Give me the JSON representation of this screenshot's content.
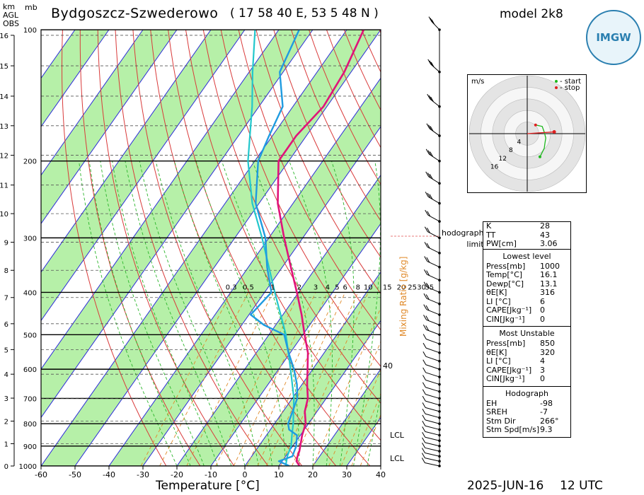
{
  "header": {
    "station": "Bydgoszcz-Szwederowo",
    "coords": "( 17 58 40  E, 53 5 48 N )",
    "model": "model 2k8",
    "date": "2025-JUN-16",
    "time": "12 UTC",
    "logo_text": "IMGW"
  },
  "left_axis": {
    "km_heading": [
      "km",
      "AGL",
      "OBS"
    ],
    "mb_heading": "mb",
    "km_ticks": [
      "0",
      "1",
      "2",
      "3",
      "4",
      "5",
      "6",
      "7",
      "8",
      "9",
      "10",
      "11",
      "12",
      "13",
      "14",
      "15",
      "16"
    ],
    "mb_ticks": [
      "1000",
      "900",
      "800",
      "700",
      "600",
      "500",
      "400",
      "300",
      "200",
      "100"
    ]
  },
  "x_axis": {
    "title": "Temperature [°C]",
    "ticks": [
      "-60",
      "-50",
      "-40",
      "-30",
      "-20",
      "-10",
      "0",
      "10",
      "20",
      "30",
      "40"
    ]
  },
  "mixing_ratio": {
    "label": "Mixing Ratio [g/kg]",
    "values": [
      "0.3",
      "0.5",
      "1",
      "2",
      "3",
      "4",
      "5",
      "6",
      "8",
      "10",
      "15",
      "20",
      "25",
      "30",
      "35"
    ],
    "right_values": [
      "40"
    ]
  },
  "lcl_labels": [
    "LCL",
    "LCL"
  ],
  "hodograph": {
    "unit": "m/s",
    "rings": [
      "4",
      "8",
      "12",
      "16"
    ],
    "legend_start": "- start",
    "legend_stop": "- stop",
    "limit_label": [
      "hodograph",
      "limit"
    ],
    "colors": {
      "trace": "#1db81d",
      "start": "#1db81d",
      "stop": "#e02020",
      "storm": "#e02020"
    }
  },
  "indices": {
    "top": [
      {
        "k": "K",
        "v": "28"
      },
      {
        "k": "TT",
        "v": "43"
      },
      {
        "k": "PW[cm]",
        "v": "3.06"
      }
    ],
    "lowest_level": {
      "title": "Lowest level",
      "rows": [
        {
          "k": "Press[mb]",
          "v": "1000"
        },
        {
          "k": "Temp[°C]",
          "v": "16.1"
        },
        {
          "k": "Dewp[°C]",
          "v": "13.1"
        },
        {
          "k": "θE[K]",
          "v": "316"
        },
        {
          "k": "LI [°C]",
          "v": "6"
        },
        {
          "k": "CAPE[Jkg⁻¹]",
          "v": "0"
        },
        {
          "k": "CIN[Jkg⁻¹]",
          "v": "0"
        }
      ]
    },
    "most_unstable": {
      "title": "Most Unstable",
      "rows": [
        {
          "k": "Press[mb]",
          "v": "850"
        },
        {
          "k": "θE[K]",
          "v": "320"
        },
        {
          "k": "LI [°C]",
          "v": "4"
        },
        {
          "k": "CAPE[Jkg⁻¹]",
          "v": "3"
        },
        {
          "k": "CIN[Jkg⁻¹]",
          "v": "0"
        }
      ]
    },
    "hodograph": {
      "title": "Hodograph",
      "rows": [
        {
          "k": "EH",
          "v": "-98"
        },
        {
          "k": "SREH",
          "v": "-7"
        },
        {
          "k": "Stm Dir",
          "v": "266°"
        },
        {
          "k": "Stm Spd[m/s]",
          "v": "9.3"
        }
      ]
    }
  },
  "chart_data": {
    "type": "line",
    "title": "Bydgoszcz-Szwederowo",
    "xlabel": "Temperature [°C]",
    "ylabel": "mb",
    "xlim": [
      -60,
      40
    ],
    "ylim": [
      1000,
      100
    ],
    "y_scale": "log-pressure (skew-T)",
    "skew_deg_per_decade": 90,
    "colors": {
      "temperature": "#e0137a",
      "dewpoint": "#1f9be0",
      "dewpoint2": "#22c7cc",
      "dry_adiabat": "#d93a3a",
      "moist_adiabat": "#2bb52b",
      "mixing_ratio": "#e08a2a",
      "isotherm": "#2b2bd9",
      "green_band": "#b6f0a8"
    },
    "series": [
      {
        "name": "Temperature",
        "p": [
          1000,
          975,
          950,
          925,
          900,
          850,
          800,
          750,
          700,
          650,
          600,
          550,
          500,
          450,
          400,
          350,
          300,
          250,
          200,
          175,
          150,
          125,
          100
        ],
        "t": [
          16.1,
          14.2,
          13.5,
          13.0,
          12.2,
          10.5,
          9.2,
          6.4,
          4.6,
          1.5,
          -1.5,
          -4.8,
          -9.5,
          -14.5,
          -20.5,
          -27.5,
          -35.5,
          -44.5,
          -53.0,
          -53.0,
          -51.0,
          -52.0,
          -55.0
        ]
      },
      {
        "name": "Dewpoint",
        "p": [
          1000,
          975,
          950,
          925,
          900,
          850,
          825,
          800,
          750,
          700,
          650,
          600,
          550,
          500,
          475,
          450,
          400,
          350,
          300,
          250,
          200,
          175,
          150,
          125,
          100
        ],
        "t": [
          13.1,
          9.0,
          12.0,
          11.5,
          11.0,
          9.0,
          5.5,
          4.0,
          2.8,
          1.5,
          -1.5,
          -5.5,
          -10.5,
          -15.5,
          -23.5,
          -29.5,
          -28.0,
          -34.5,
          -41.0,
          -51.0,
          -59.0,
          -61.0,
          -63.0,
          -71.0,
          -74.0
        ]
      },
      {
        "name": "Dewpoint2",
        "p": [
          1000,
          950,
          900,
          850,
          800,
          700,
          600,
          500,
          400,
          300,
          250,
          200,
          150,
          125,
          100
        ],
        "t": [
          12.0,
          10.5,
          9.5,
          7.5,
          5.5,
          0.5,
          -6.5,
          -15.0,
          -27.0,
          -42.0,
          -52.0,
          -62.0,
          -72.0,
          -79.0,
          -87.0
        ]
      }
    ],
    "km_ticks": [
      0,
      1,
      2,
      3,
      4,
      5,
      6,
      7,
      8,
      9,
      10,
      11,
      12,
      13,
      14,
      15,
      16
    ],
    "mixing_ratio_values": [
      0.3,
      0.5,
      1,
      2,
      3,
      4,
      5,
      6,
      8,
      10,
      15,
      20,
      25,
      30,
      35
    ],
    "wind_barbs_p": [
      1000,
      975,
      950,
      925,
      900,
      875,
      850,
      825,
      800,
      775,
      750,
      725,
      700,
      675,
      650,
      625,
      600,
      575,
      550,
      525,
      500,
      475,
      450,
      425,
      400,
      375,
      350,
      325,
      300,
      275,
      250,
      225,
      200,
      175,
      150,
      125,
      100
    ],
    "hodograph": {
      "u": [
        -0.5,
        1.0,
        1.2,
        1.5,
        1.0,
        0.3,
        -2.0
      ],
      "v": [
        -8.0,
        -5.0,
        -3.5,
        -1.5,
        0.5,
        2.5,
        3.0
      ],
      "storm_u": 9.3,
      "storm_v": 0.6
    }
  }
}
